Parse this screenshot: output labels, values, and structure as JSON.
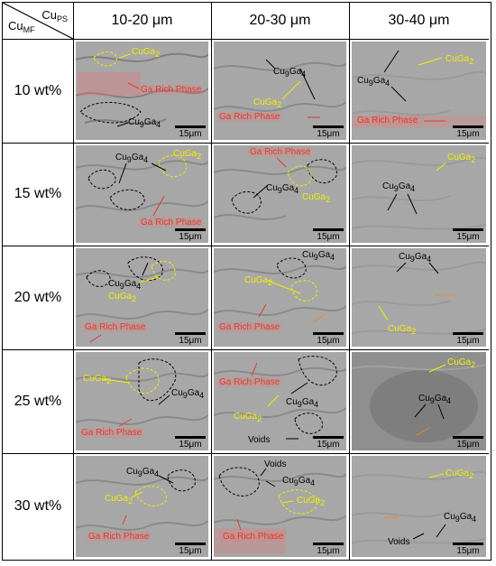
{
  "header": {
    "corner_top": "Cu",
    "corner_top_sub": "PS",
    "corner_bottom": "Cu",
    "corner_bottom_sub": "MF",
    "columns": [
      "10-20 μm",
      "20-30 μm",
      "30-40 μm"
    ]
  },
  "rows": [
    "10 wt%",
    "15 wt%",
    "20 wt%",
    "25 wt%",
    "30 wt%"
  ],
  "scale_label": "15μm",
  "phases": {
    "cuga2": "CuGa",
    "cuga2_sub": "2",
    "cu9ga4_a": "Cu",
    "cu9ga4_b": "9",
    "cu9ga4_c": "Ga",
    "cu9ga4_d": "4",
    "ga_rich": "Ga Rich Phase",
    "voids": "Voids"
  },
  "colors": {
    "cuga2_label": "#f2ee00",
    "cu9ga4_label": "#000000",
    "ga_rich_label": "#e23b2e",
    "orange_label": "#f0862a"
  }
}
